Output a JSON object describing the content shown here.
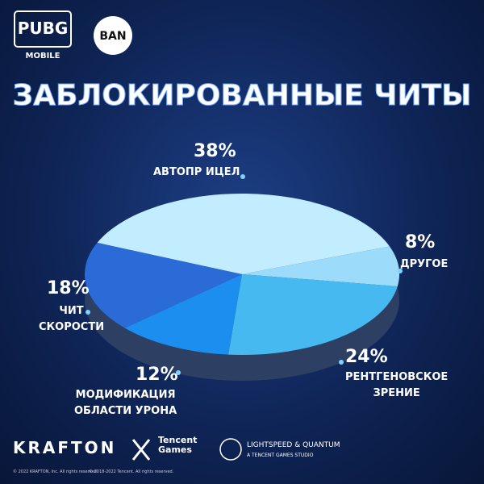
{
  "brand": {
    "game": "PUBG",
    "game_sub": "MOBILE",
    "badge": "BAN",
    "publisher": "KRAFTON",
    "tencent": "Tencent\nGames",
    "studio": "LIGHTSPEED & QUANTUM",
    "studio_sub": "A TENCENT GAMES STUDIO",
    "copyright_krafton": "© 2022 KRAFTON, Inc. All rights reserved.",
    "copyright_tencent": "© 2018-2022 Tencent. All rights reserved."
  },
  "chart_data": {
    "type": "pie",
    "title": "ЗАБЛОКИРОВАННЫЕ ЧИТЫ",
    "categories": [
      "АВТОПР ИЦЕЛ",
      "ДРУГОЕ",
      "РЕНТГЕНОВСКОЕ\nЗРЕНИЕ",
      "МОДИФИКАЦИЯ\nОБЛАСТИ УРОНА",
      "ЧИТ\nСКОРОСТИ"
    ],
    "values": [
      38,
      8,
      24,
      12,
      18
    ],
    "value_labels": [
      "38%",
      "8%",
      "24%",
      "12%",
      "18%"
    ],
    "colors": [
      "#c2ecff",
      "#9cdbfa",
      "#46baf0",
      "#1c8ef0",
      "#2a6bd8"
    ]
  }
}
